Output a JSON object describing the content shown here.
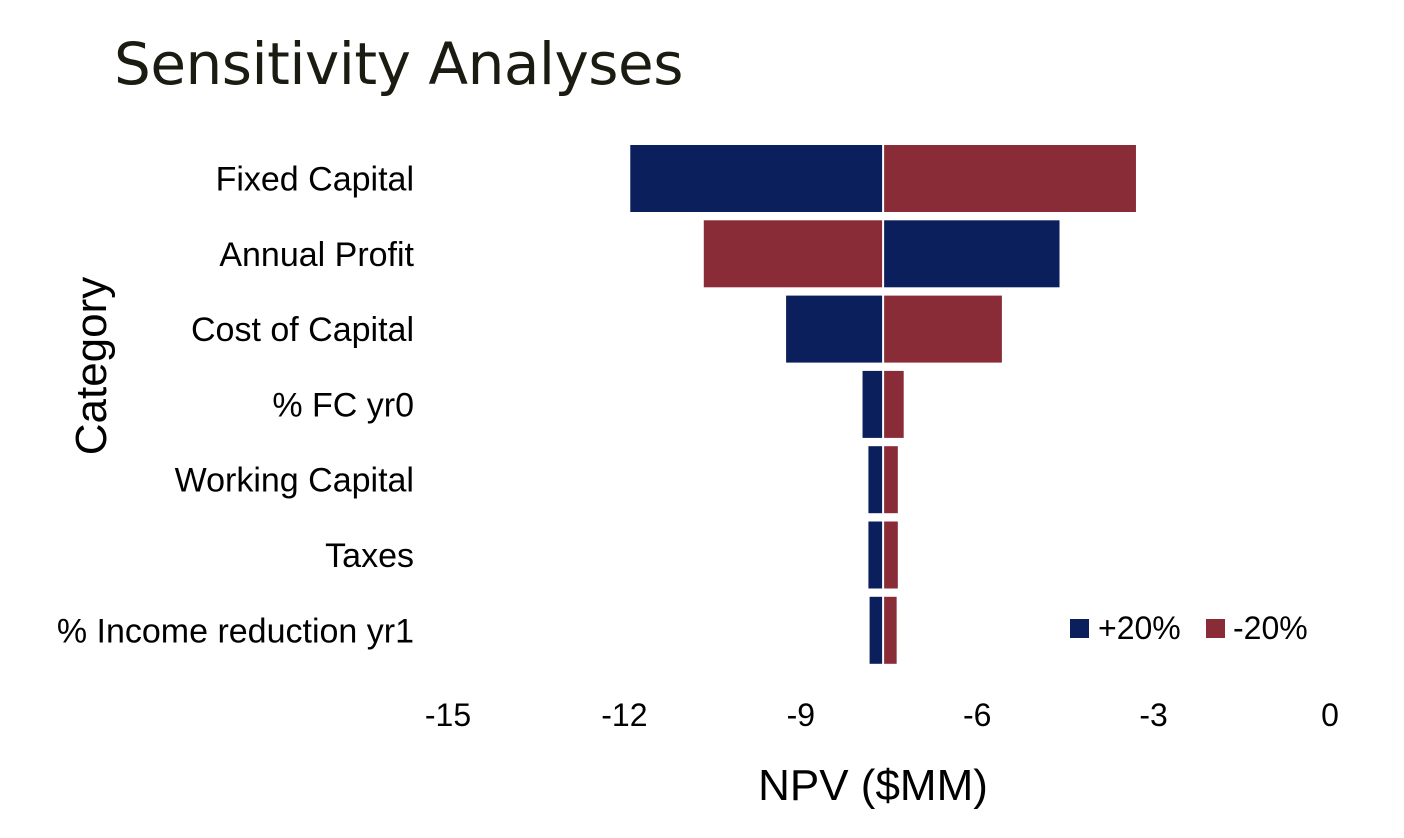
{
  "title": "Sensitivity Analyses",
  "chart_data": {
    "type": "bar",
    "orientation": "horizontal",
    "style": "tornado",
    "baseline": -7.6,
    "categories": [
      "Fixed Capital",
      "Annual Profit",
      "Cost of Capital",
      "% FC yr0",
      "Working Capital",
      "Taxes",
      "% Income reduction yr1"
    ],
    "series": [
      {
        "name": "+20%",
        "color": "#0b1f5c",
        "values": [
          -11.9,
          -4.6,
          -9.25,
          -7.95,
          -7.85,
          -7.85,
          -7.83
        ]
      },
      {
        "name": "-20%",
        "color": "#8a2c38",
        "values": [
          -3.3,
          -10.65,
          -5.58,
          -7.25,
          -7.35,
          -7.35,
          -7.37
        ]
      }
    ],
    "xlabel": "NPV ($MM)",
    "ylabel": "Category",
    "xlim": [
      -15,
      0
    ],
    "xticks": [
      "-15",
      "-12",
      "-9",
      "-6",
      "-3",
      "0"
    ],
    "grid": false,
    "legend_position": "bottom-right"
  }
}
